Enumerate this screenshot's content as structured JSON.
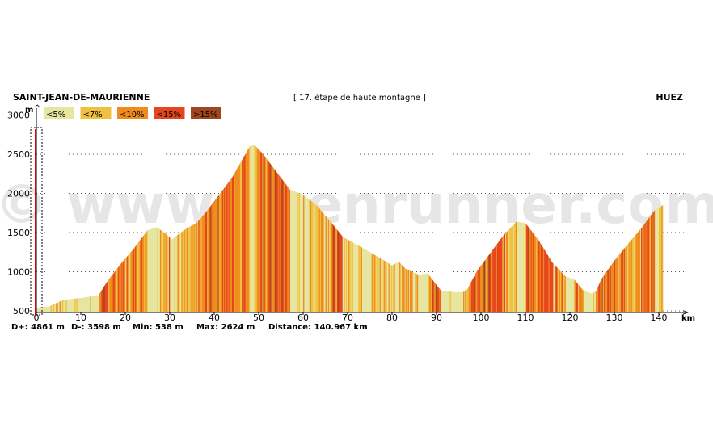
{
  "chart_data": {
    "type": "area",
    "title": "[ 17. étape de haute montagne ]",
    "start_label": "SAINT-JEAN-DE-MAURIENNE",
    "end_label": "HUEZ",
    "ylabel": "m",
    "xlabel": "km",
    "x_ticks": [
      "0",
      "10",
      "20",
      "30",
      "40",
      "50",
      "60",
      "70",
      "80",
      "90",
      "100",
      "110",
      "120",
      "130",
      "140"
    ],
    "y_ticks": [
      "500",
      "1000",
      "1500",
      "2000",
      "2500",
      "3000"
    ],
    "xlim": [
      0,
      141
    ],
    "ylim": [
      400,
      3000
    ],
    "grid": true,
    "legend": [
      {
        "label": "<5%",
        "color": "#e6e6a0"
      },
      {
        "label": "<7%",
        "color": "#f0c040"
      },
      {
        "label": "<10%",
        "color": "#f08c1e"
      },
      {
        "label": "<15%",
        "color": "#e6461e"
      },
      {
        "label": ">15%",
        "color": "#a0461e"
      }
    ],
    "profile": [
      [
        0,
        538
      ],
      [
        3,
        560
      ],
      [
        6,
        640
      ],
      [
        10,
        665
      ],
      [
        14,
        700
      ],
      [
        16,
        880
      ],
      [
        19,
        1100
      ],
      [
        22,
        1300
      ],
      [
        25,
        1530
      ],
      [
        27,
        1570
      ],
      [
        29,
        1490
      ],
      [
        30.5,
        1410
      ],
      [
        32,
        1480
      ],
      [
        34,
        1560
      ],
      [
        36,
        1620
      ],
      [
        38,
        1750
      ],
      [
        40,
        1900
      ],
      [
        42,
        2050
      ],
      [
        44,
        2200
      ],
      [
        46,
        2400
      ],
      [
        48,
        2600
      ],
      [
        49,
        2624
      ],
      [
        51,
        2500
      ],
      [
        53,
        2350
      ],
      [
        55,
        2200
      ],
      [
        57,
        2050
      ],
      [
        60,
        1980
      ],
      [
        63,
        1850
      ],
      [
        66,
        1650
      ],
      [
        69,
        1440
      ],
      [
        72,
        1350
      ],
      [
        75,
        1250
      ],
      [
        78,
        1150
      ],
      [
        80,
        1080
      ],
      [
        81.5,
        1130
      ],
      [
        83,
        1040
      ],
      [
        86,
        960
      ],
      [
        88,
        980
      ],
      [
        90,
        830
      ],
      [
        91,
        760
      ],
      [
        94,
        740
      ],
      [
        96,
        740
      ],
      [
        97,
        780
      ],
      [
        99,
        1000
      ],
      [
        102,
        1230
      ],
      [
        105,
        1460
      ],
      [
        108,
        1640
      ],
      [
        110,
        1620
      ],
      [
        113,
        1400
      ],
      [
        116,
        1120
      ],
      [
        119,
        940
      ],
      [
        121,
        900
      ],
      [
        123,
        760
      ],
      [
        125,
        720
      ],
      [
        126,
        760
      ],
      [
        127,
        900
      ],
      [
        130,
        1140
      ],
      [
        133,
        1350
      ],
      [
        136,
        1550
      ],
      [
        139,
        1780
      ],
      [
        140.967,
        1850
      ]
    ],
    "stats": [
      {
        "label": "D+:",
        "value": "4861 m"
      },
      {
        "label": "D-:",
        "value": "3598 m"
      },
      {
        "label": "Min:",
        "value": "538 m"
      },
      {
        "label": "Max:",
        "value": "2624 m"
      },
      {
        "label": "Distance:",
        "value": "140.967 km"
      }
    ],
    "watermark": "© www.openrunner.com"
  }
}
